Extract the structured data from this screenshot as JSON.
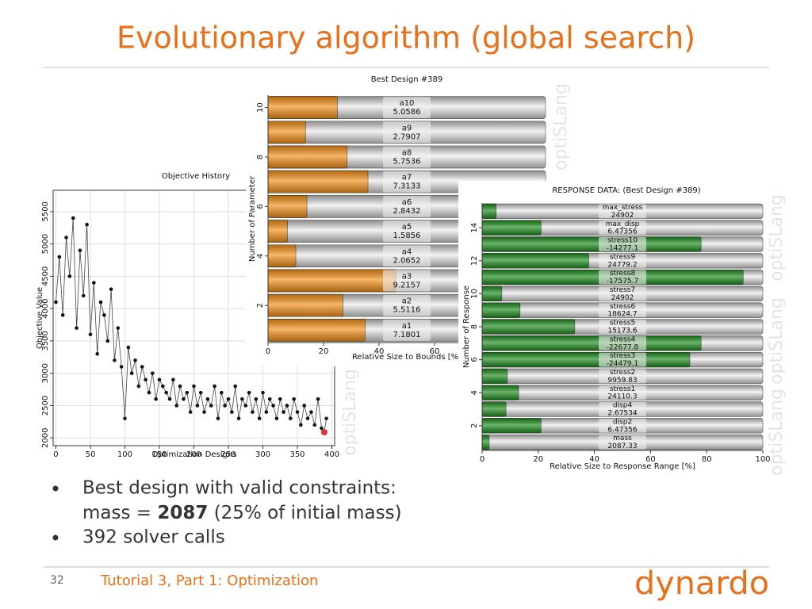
{
  "title": "Evolutionary algorithm (global search)",
  "bullets": {
    "line1": "Best design with valid constraints:",
    "mass_prefix": "mass =",
    "mass_value": 2087,
    "mass_suffix": "(25% of initial mass)",
    "line2": "392 solver calls"
  },
  "footer": {
    "page": 32,
    "text": "Tutorial 3, Part 1: Optimization",
    "logo": "dynardo"
  },
  "watermark": "optiSLang",
  "chart_data": [
    {
      "type": "line",
      "title": "Objective History",
      "xlabel": "Optimization Designs",
      "ylabel": "Objective Value",
      "x": [
        0,
        5,
        10,
        15,
        20,
        25,
        30,
        35,
        40,
        45,
        50,
        55,
        60,
        65,
        70,
        75,
        80,
        85,
        90,
        95,
        100,
        105,
        110,
        115,
        120,
        125,
        130,
        135,
        140,
        145,
        150,
        155,
        160,
        165,
        170,
        175,
        180,
        185,
        190,
        195,
        200,
        205,
        210,
        215,
        220,
        225,
        230,
        235,
        240,
        245,
        250,
        255,
        260,
        265,
        270,
        275,
        280,
        285,
        290,
        295,
        300,
        305,
        310,
        315,
        320,
        325,
        330,
        335,
        340,
        345,
        350,
        355,
        360,
        365,
        370,
        375,
        380,
        385,
        389,
        392
      ],
      "values": [
        4100,
        4800,
        3900,
        5100,
        4500,
        5400,
        3700,
        4900,
        4200,
        5300,
        3600,
        4400,
        3300,
        4100,
        3900,
        3500,
        4300,
        3200,
        3700,
        3100,
        2300,
        3400,
        3000,
        3200,
        2800,
        3100,
        2900,
        2700,
        3000,
        2600,
        2900,
        2800,
        2700,
        2600,
        2900,
        2500,
        2800,
        2600,
        2700,
        2400,
        2800,
        2500,
        2700,
        2400,
        2600,
        2500,
        2800,
        2300,
        2700,
        2500,
        2600,
        2400,
        2800,
        2300,
        2600,
        2500,
        2700,
        2400,
        2600,
        2300,
        2700,
        2400,
        2600,
        2500,
        2300,
        2600,
        2400,
        2500,
        2300,
        2600,
        2400,
        2200,
        2500,
        2300,
        2400,
        2200,
        2600,
        2150,
        2087.33,
        2300
      ],
      "color": "#111111",
      "highlight": {
        "x": 389,
        "y": 2087.33,
        "color": "#e0303a"
      },
      "xlim": [
        -4,
        404
      ],
      "ylim": [
        1880,
        5830
      ],
      "xticks": [
        0,
        50,
        100,
        150,
        200,
        250,
        300,
        350,
        400
      ],
      "yticks": [
        2000,
        2500,
        3000,
        3500,
        4000,
        4500,
        5000,
        5500
      ],
      "grid": true
    },
    {
      "type": "hbar",
      "title": "Best Design #389",
      "xlabel": "Relative Size to Bounds [%]",
      "ylabel": "Number of Parameter",
      "categories": [
        "a1",
        "a2",
        "a3",
        "a4",
        "a5",
        "a6",
        "a7",
        "a8",
        "a9",
        "a10"
      ],
      "values": [
        35,
        27,
        46,
        10,
        7,
        14,
        36,
        28.5,
        13.5,
        25
      ],
      "label_values": [
        7.1801,
        5.5116,
        9.2157,
        2.0652,
        1.5856,
        2.8432,
        7.3133,
        5.7536,
        2.7907,
        5.0586
      ],
      "color": "#f39019",
      "xlim": [
        0,
        100
      ],
      "ylim": [
        0.5,
        10.5
      ],
      "xticks": [
        0,
        20,
        40,
        60
      ],
      "yticks": [
        2,
        4,
        6,
        8,
        10
      ]
    },
    {
      "type": "hbar",
      "title": "RESPONSE DATA: (Best Design #389)",
      "xlabel": "Relative Size to Response Range [%]",
      "ylabel": "Number of Response",
      "categories": [
        "mass",
        "disp2",
        "disp4",
        "stress1",
        "stress2",
        "stress3",
        "stress4",
        "stress5",
        "stress6",
        "stress7",
        "stress8",
        "stress9",
        "stress10",
        "max_disp",
        "max_stress"
      ],
      "values": [
        2.5,
        21,
        8.5,
        13,
        9,
        74,
        78,
        33,
        13.5,
        7,
        93,
        38,
        78,
        21,
        5
      ],
      "label_values": [
        2087.33,
        6.47356,
        2.67534,
        24110.3,
        9959.83,
        -24479.1,
        -22677.8,
        15173.6,
        18624.7,
        24902,
        -17575.7,
        24779.2,
        -14277.1,
        6.47356,
        24902
      ],
      "color": "#1e8c1e",
      "xlim": [
        0,
        100
      ],
      "ylim": [
        0.5,
        15.5
      ],
      "xticks": [
        0,
        20,
        40,
        60,
        80,
        100
      ],
      "yticks": [
        2,
        4,
        6,
        8,
        10,
        12,
        14
      ]
    }
  ]
}
